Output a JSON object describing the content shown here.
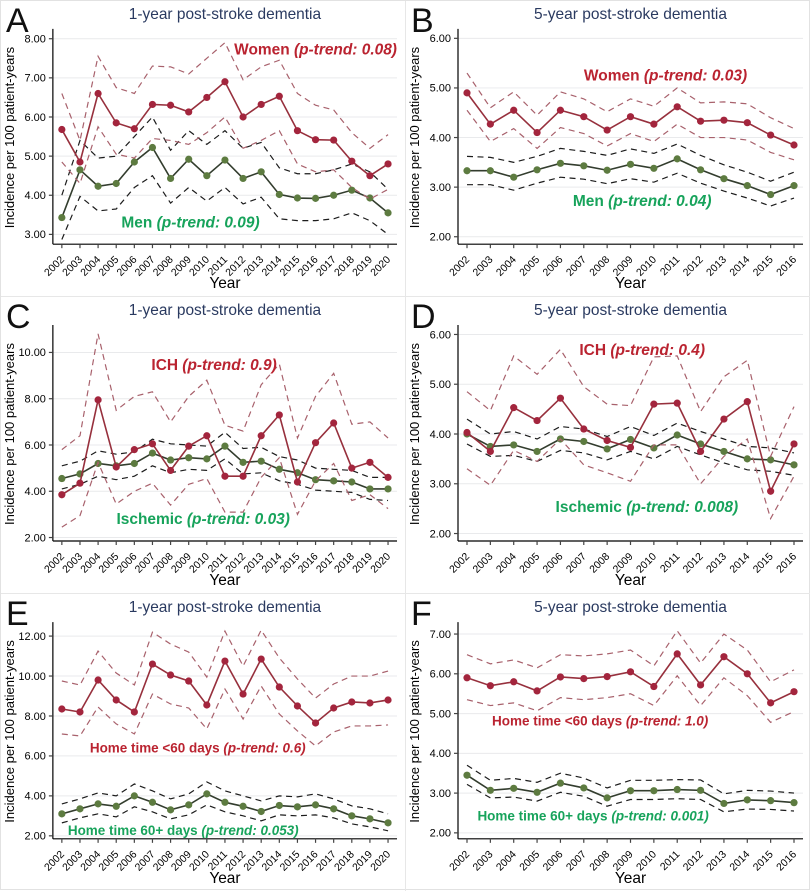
{
  "colors": {
    "red": {
      "line": "#97303d",
      "marker": "#a3253d",
      "ci": "#a8616c",
      "label": "#ba2330"
    },
    "green": {
      "line": "#333d2e",
      "marker": "#5d7b40",
      "ci": "#1c1c1c",
      "label": "#17a35b"
    },
    "title": "#2a3a60",
    "grid": "#e9eaec",
    "axis": "#000000",
    "tick": "#444444",
    "text": "#000000",
    "panel_letter": "#111111"
  },
  "chart_data": [
    {
      "panel": "A",
      "type": "line",
      "title": "1-year post-stroke dementia",
      "ylabel": "Incidence per 100 patient-years",
      "xlabel": "Year",
      "years": [
        2002,
        2003,
        2004,
        2005,
        2006,
        2007,
        2008,
        2009,
        2010,
        2011,
        2012,
        2013,
        2014,
        2015,
        2016,
        2017,
        2018,
        2019,
        2020
      ],
      "yticks": [
        3,
        4,
        5,
        6,
        7,
        8
      ],
      "ylim": [
        2.75,
        8.2
      ],
      "label_font": 15.5,
      "grid": "on",
      "series": [
        {
          "name": "Women",
          "ptrend": "p-trend: 0.08",
          "color": "red",
          "label_x": 2016,
          "label_y": 7.72,
          "values": [
            5.68,
            4.85,
            6.6,
            5.85,
            5.7,
            6.32,
            6.3,
            6.13,
            6.5,
            6.9,
            6.0,
            6.32,
            6.53,
            5.65,
            5.42,
            5.41,
            4.87,
            4.5,
            4.8
          ],
          "upper": [
            6.6,
            5.4,
            7.55,
            6.75,
            6.6,
            7.3,
            7.28,
            7.1,
            7.5,
            7.9,
            6.95,
            7.28,
            7.45,
            6.6,
            6.3,
            6.18,
            5.6,
            5.2,
            5.55
          ],
          "lower": [
            4.85,
            4.3,
            5.75,
            5.05,
            4.95,
            5.45,
            5.4,
            5.3,
            5.6,
            6.0,
            5.2,
            5.4,
            5.65,
            4.8,
            4.6,
            4.65,
            4.2,
            3.9,
            4.15
          ]
        },
        {
          "name": "Men",
          "ptrend": "p-trend: 0.09",
          "color": "green",
          "label_x": 2009.1,
          "label_y": 3.3,
          "values": [
            3.43,
            4.65,
            4.23,
            4.3,
            4.85,
            5.22,
            4.43,
            4.92,
            4.5,
            4.9,
            4.43,
            4.6,
            4.02,
            3.93,
            3.92,
            4.0,
            4.13,
            3.93,
            3.55
          ],
          "upper": [
            4.0,
            5.4,
            4.95,
            5.0,
            5.5,
            6.0,
            5.15,
            5.65,
            5.3,
            5.65,
            5.2,
            5.35,
            4.7,
            4.55,
            4.55,
            4.65,
            4.8,
            4.6,
            4.15
          ],
          "lower": [
            2.87,
            3.97,
            3.6,
            3.65,
            4.2,
            4.5,
            3.8,
            4.2,
            3.85,
            4.2,
            3.78,
            3.95,
            3.4,
            3.35,
            3.35,
            3.4,
            3.55,
            3.35,
            3.0
          ]
        }
      ]
    },
    {
      "panel": "B",
      "type": "line",
      "title": "5-year post-stroke dementia",
      "ylabel": "Incidence per 100 patient-years",
      "xlabel": "Year",
      "years": [
        2002,
        2003,
        2004,
        2005,
        2006,
        2007,
        2008,
        2009,
        2010,
        2011,
        2012,
        2013,
        2014,
        2015,
        2016
      ],
      "yticks": [
        2,
        3,
        4,
        5,
        6
      ],
      "ylim": [
        1.85,
        6.15
      ],
      "label_font": 15.5,
      "grid": "on",
      "series": [
        {
          "name": "Women",
          "ptrend": "p-trend: 0.03",
          "color": "red",
          "label_x": 2010.5,
          "label_y": 5.25,
          "values": [
            4.9,
            4.27,
            4.55,
            4.1,
            4.55,
            4.42,
            4.15,
            4.42,
            4.27,
            4.62,
            4.33,
            4.35,
            4.3,
            4.05,
            3.85
          ],
          "upper": [
            5.3,
            4.6,
            4.92,
            4.45,
            4.92,
            4.78,
            4.52,
            4.78,
            4.63,
            5.0,
            4.7,
            4.72,
            4.68,
            4.4,
            4.18
          ],
          "lower": [
            4.55,
            3.92,
            4.18,
            3.78,
            4.2,
            4.08,
            3.83,
            4.08,
            3.92,
            4.27,
            4.0,
            4.0,
            3.95,
            3.7,
            3.55
          ]
        },
        {
          "name": "Men",
          "ptrend": "p-trend: 0.04",
          "color": "green",
          "label_x": 2009.5,
          "label_y": 2.72,
          "values": [
            3.33,
            3.33,
            3.2,
            3.35,
            3.48,
            3.43,
            3.34,
            3.46,
            3.38,
            3.57,
            3.35,
            3.17,
            3.03,
            2.85,
            3.03
          ],
          "upper": [
            3.62,
            3.6,
            3.5,
            3.62,
            3.78,
            3.72,
            3.64,
            3.77,
            3.68,
            3.87,
            3.64,
            3.45,
            3.3,
            3.12,
            3.3
          ],
          "lower": [
            3.05,
            3.05,
            2.94,
            3.08,
            3.2,
            3.16,
            3.07,
            3.17,
            3.1,
            3.28,
            3.08,
            2.92,
            2.78,
            2.62,
            2.78
          ]
        }
      ]
    },
    {
      "panel": "C",
      "type": "line",
      "title": "1-year post-stroke dementia",
      "ylabel": "Incidence per 100 patient-years",
      "xlabel": "Year",
      "years": [
        2002,
        2003,
        2004,
        2005,
        2006,
        2007,
        2008,
        2009,
        2010,
        2011,
        2012,
        2013,
        2014,
        2015,
        2016,
        2017,
        2018,
        2019,
        2020
      ],
      "yticks": [
        2,
        4,
        6,
        8,
        10
      ],
      "ylim": [
        1.85,
        11.1
      ],
      "label_font": 15.5,
      "grid": "on",
      "series": [
        {
          "name": "ICH",
          "ptrend": "p-trend: 0.9",
          "color": "red",
          "label_x": 2010.4,
          "label_y": 9.45,
          "values": [
            3.85,
            4.35,
            7.95,
            5.05,
            5.8,
            6.05,
            4.9,
            5.95,
            6.4,
            4.65,
            4.65,
            6.4,
            7.3,
            4.4,
            6.1,
            6.95,
            5.0,
            5.25,
            4.6
          ],
          "upper": [
            5.8,
            6.4,
            10.8,
            7.5,
            8.1,
            8.3,
            7.0,
            8.1,
            8.8,
            6.85,
            6.6,
            8.6,
            9.5,
            6.3,
            8.1,
            9.1,
            6.9,
            7.0,
            6.3
          ],
          "lower": [
            2.45,
            2.95,
            5.25,
            3.45,
            4.0,
            4.35,
            3.4,
            4.3,
            4.55,
            3.1,
            3.1,
            4.6,
            5.45,
            3.0,
            4.45,
            5.2,
            3.6,
            3.85,
            3.25
          ]
        },
        {
          "name": "Ischemic",
          "ptrend": "p-trend: 0.03",
          "color": "green",
          "label_x": 2009.8,
          "label_y": 2.8,
          "values": [
            4.55,
            4.75,
            5.2,
            5.1,
            5.2,
            5.65,
            5.35,
            5.45,
            5.4,
            5.95,
            5.25,
            5.3,
            4.95,
            4.8,
            4.5,
            4.45,
            4.4,
            4.1,
            4.1
          ],
          "upper": [
            5.1,
            5.3,
            5.75,
            5.6,
            5.7,
            6.25,
            6.05,
            6.0,
            5.95,
            6.55,
            5.85,
            5.9,
            5.5,
            5.35,
            5.0,
            4.95,
            4.9,
            4.6,
            4.6
          ],
          "lower": [
            4.1,
            4.3,
            4.65,
            4.5,
            4.65,
            5.1,
            4.8,
            4.95,
            4.9,
            5.4,
            4.75,
            4.8,
            4.45,
            4.3,
            4.05,
            4.0,
            3.95,
            3.65,
            3.6
          ]
        }
      ]
    },
    {
      "panel": "D",
      "type": "line",
      "title": "5-year post-stroke dementia",
      "ylabel": "Incidence per 100 patient-years",
      "xlabel": "Year",
      "years": [
        2002,
        2003,
        2004,
        2005,
        2006,
        2007,
        2008,
        2009,
        2010,
        2011,
        2012,
        2013,
        2014,
        2015,
        2016
      ],
      "yticks": [
        2,
        3,
        4,
        5,
        6
      ],
      "ylim": [
        1.85,
        6.15
      ],
      "label_font": 15.5,
      "grid": "on",
      "series": [
        {
          "name": "ICH",
          "ptrend": "p-trend: 0.4",
          "color": "red",
          "label_x": 2009.5,
          "label_y": 5.69,
          "values": [
            4.03,
            3.65,
            4.53,
            4.27,
            4.72,
            4.1,
            3.87,
            3.73,
            4.6,
            4.62,
            3.65,
            4.3,
            4.65,
            2.85,
            3.8
          ],
          "upper": [
            4.85,
            4.47,
            5.57,
            5.2,
            5.7,
            4.95,
            4.6,
            4.57,
            5.55,
            5.57,
            4.45,
            5.15,
            5.48,
            3.55,
            4.55
          ],
          "lower": [
            3.3,
            2.97,
            3.67,
            3.45,
            3.9,
            3.38,
            3.22,
            3.05,
            3.78,
            3.78,
            3.0,
            3.55,
            3.9,
            2.3,
            3.15
          ]
        },
        {
          "name": "Ischemic",
          "ptrend": "p-trend: 0.008",
          "color": "green",
          "label_x": 2009.7,
          "label_y": 2.53,
          "values": [
            4.0,
            3.75,
            3.78,
            3.65,
            3.9,
            3.85,
            3.7,
            3.89,
            3.72,
            3.98,
            3.8,
            3.65,
            3.5,
            3.48,
            3.38
          ],
          "upper": [
            4.3,
            4.0,
            4.05,
            3.9,
            4.15,
            4.1,
            3.95,
            4.15,
            3.97,
            4.22,
            4.05,
            3.9,
            3.75,
            3.72,
            3.62
          ],
          "lower": [
            3.8,
            3.55,
            3.57,
            3.45,
            3.67,
            3.62,
            3.48,
            3.65,
            3.5,
            3.75,
            3.58,
            3.42,
            3.28,
            3.25,
            3.17
          ]
        }
      ]
    },
    {
      "panel": "E",
      "type": "line",
      "title": "1-year post-stroke dementia",
      "ylabel": "Incidence per 100 patient-years",
      "xlabel": "Year",
      "years": [
        2002,
        2003,
        2004,
        2005,
        2006,
        2007,
        2008,
        2009,
        2010,
        2011,
        2012,
        2013,
        2014,
        2015,
        2016,
        2017,
        2018,
        2019,
        2020
      ],
      "yticks": [
        2,
        4,
        6,
        8,
        10,
        12
      ],
      "ylim": [
        1.85,
        12.6
      ],
      "label_font": 13.5,
      "grid": "on",
      "series": [
        {
          "name": "Home time <60 days",
          "ptrend": "p-trend: 0.6",
          "color": "red",
          "label_x": 2009.5,
          "label_y": 6.42,
          "values": [
            8.35,
            8.2,
            9.8,
            8.8,
            8.2,
            10.6,
            10.05,
            9.75,
            8.55,
            10.75,
            9.1,
            10.85,
            9.45,
            8.5,
            7.65,
            8.4,
            8.7,
            8.65,
            8.8
          ],
          "upper": [
            9.75,
            9.55,
            11.25,
            10.15,
            9.55,
            12.2,
            11.6,
            11.2,
            9.95,
            12.25,
            10.5,
            12.3,
            10.9,
            9.85,
            8.9,
            9.6,
            10.0,
            10.0,
            10.25
          ],
          "lower": [
            7.1,
            7.0,
            8.45,
            7.6,
            7.1,
            9.1,
            8.6,
            8.4,
            7.35,
            9.35,
            7.85,
            9.5,
            8.1,
            7.25,
            6.5,
            7.2,
            7.5,
            7.5,
            7.55
          ]
        },
        {
          "name": "Home time 60+ days",
          "ptrend": "p-trend: 0.053",
          "color": "green",
          "label_x": 2008.7,
          "label_y": 2.28,
          "values": [
            3.1,
            3.35,
            3.6,
            3.48,
            4.0,
            3.68,
            3.3,
            3.55,
            4.1,
            3.68,
            3.48,
            3.22,
            3.52,
            3.45,
            3.55,
            3.35,
            3.0,
            2.85,
            2.65
          ],
          "upper": [
            3.6,
            3.85,
            4.15,
            4.0,
            4.6,
            4.25,
            3.85,
            4.1,
            4.7,
            4.25,
            4.0,
            3.75,
            4.0,
            3.95,
            4.1,
            3.85,
            3.5,
            3.35,
            3.1
          ],
          "lower": [
            2.65,
            2.9,
            3.1,
            2.95,
            3.45,
            3.2,
            2.85,
            3.05,
            3.55,
            3.2,
            3.0,
            2.75,
            3.05,
            3.0,
            3.05,
            2.9,
            2.6,
            2.45,
            2.25
          ]
        }
      ]
    },
    {
      "panel": "F",
      "type": "line",
      "title": "5-year post-stroke dementia",
      "ylabel": "Incidence per 100 patient-years",
      "xlabel": "Year",
      "years": [
        2002,
        2003,
        2004,
        2005,
        2006,
        2007,
        2008,
        2009,
        2010,
        2011,
        2012,
        2013,
        2014,
        2015,
        2016
      ],
      "yticks": [
        2,
        3,
        4,
        5,
        6,
        7
      ],
      "ylim": [
        1.85,
        7.25
      ],
      "label_font": 13.5,
      "grid": "on",
      "series": [
        {
          "name": "Home time <60 days",
          "ptrend": "p-trend: 1.0",
          "color": "red",
          "label_x": 2007.7,
          "label_y": 4.82,
          "values": [
            5.9,
            5.7,
            5.8,
            5.57,
            5.92,
            5.88,
            5.93,
            6.05,
            5.68,
            6.5,
            5.72,
            6.43,
            6.0,
            5.27,
            5.55
          ],
          "upper": [
            6.48,
            6.25,
            6.35,
            6.15,
            6.48,
            6.45,
            6.5,
            6.6,
            6.2,
            7.08,
            6.27,
            7.0,
            6.6,
            5.8,
            6.1
          ],
          "lower": [
            5.35,
            5.2,
            5.27,
            5.07,
            5.4,
            5.35,
            5.4,
            5.5,
            5.2,
            5.95,
            5.2,
            5.9,
            5.45,
            4.78,
            5.05
          ]
        },
        {
          "name": "Home time 60+ days",
          "ptrend": "p-trend: 0.001",
          "color": "green",
          "label_x": 2007.4,
          "label_y": 2.44,
          "values": [
            3.45,
            3.07,
            3.12,
            3.02,
            3.25,
            3.13,
            2.88,
            3.06,
            3.06,
            3.09,
            3.07,
            2.74,
            2.83,
            2.81,
            2.76
          ],
          "upper": [
            3.7,
            3.32,
            3.37,
            3.27,
            3.5,
            3.38,
            3.13,
            3.32,
            3.32,
            3.34,
            3.33,
            2.98,
            3.07,
            3.05,
            3.0
          ],
          "lower": [
            3.22,
            2.88,
            2.9,
            2.8,
            3.02,
            2.92,
            2.67,
            2.84,
            2.84,
            2.86,
            2.84,
            2.53,
            2.6,
            2.59,
            2.55
          ]
        }
      ]
    }
  ]
}
